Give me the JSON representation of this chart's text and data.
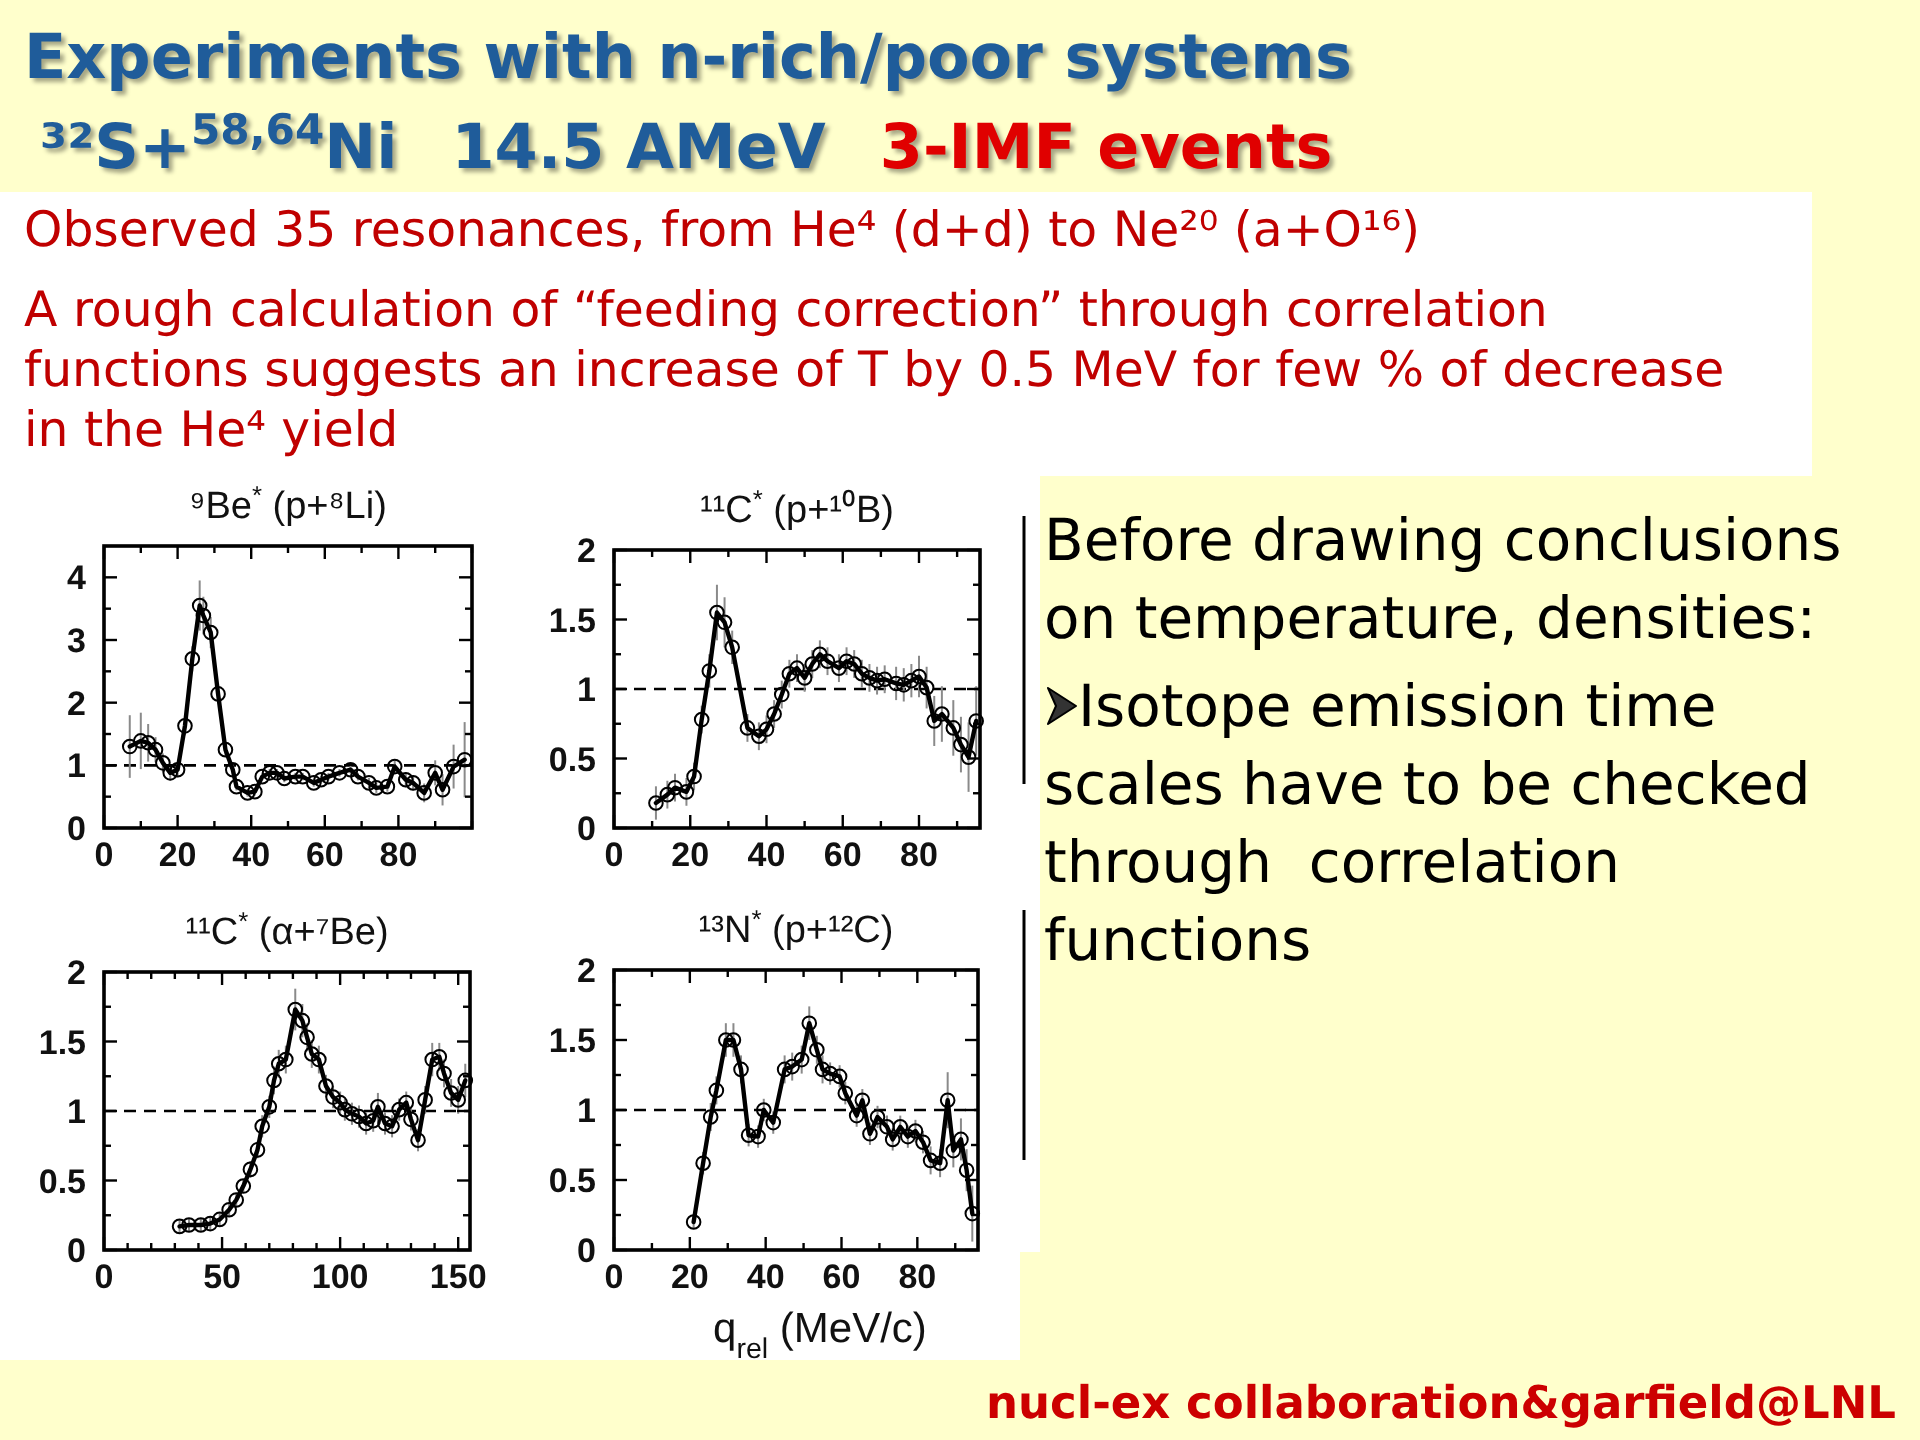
{
  "chart_data": [
    {
      "type": "other",
      "title": "Experiments with n-rich/poor systems",
      "subtitle": "³²S+$^{58,64}$Ni  14.5 AMeV  3-IMF events",
      "annotations": [
        "Observed 35 resonances, from He⁴ (d+d) to Ne²⁰ (a+O¹⁶)",
        "A rough calculation of “feeding correction” through correlation functions suggests an increase of T by 0.5 MeV for few % of decrease in the He⁴ yield",
        "Before drawing conclusions on temperature, densities:",
        "Isotope emission time scales have to be checked through  correlation functions",
        "nucl-ex collaboration&garfield@LNL"
      ]
    },
    {
      "type": "line",
      "title": "⁹Be$^{*}$ (p+⁸Li)",
      "color": "#000000",
      "marker": "circle",
      "x": [
        7,
        10,
        12,
        14,
        16,
        18,
        20,
        22,
        24,
        26,
        27,
        29,
        31,
        33,
        35,
        36,
        39,
        41,
        43,
        45,
        47,
        49,
        52,
        54,
        57,
        59,
        61,
        64,
        67,
        69,
        72,
        74,
        77,
        79,
        82,
        84,
        87,
        90,
        92,
        95,
        98
      ],
      "values": [
        1.3,
        1.39,
        1.36,
        1.25,
        1.04,
        0.88,
        0.93,
        1.63,
        2.7,
        3.55,
        3.39,
        3.12,
        2.14,
        1.25,
        0.93,
        0.66,
        0.56,
        0.58,
        0.82,
        0.88,
        0.88,
        0.79,
        0.82,
        0.82,
        0.72,
        0.77,
        0.82,
        0.88,
        0.93,
        0.82,
        0.72,
        0.64,
        0.66,
        0.98,
        0.77,
        0.72,
        0.56,
        0.88,
        0.61,
        0.98,
        1.09
      ],
      "errors": [
        0.5,
        0.45,
        0.3,
        0.2,
        0.15,
        0.12,
        0.12,
        0.15,
        0.2,
        0.4,
        0.3,
        0.25,
        0.15,
        0.1,
        0.08,
        0.06,
        0.06,
        0.06,
        0.06,
        0.06,
        0.06,
        0.06,
        0.06,
        0.06,
        0.06,
        0.06,
        0.06,
        0.06,
        0.06,
        0.06,
        0.08,
        0.08,
        0.08,
        0.1,
        0.12,
        0.12,
        0.15,
        0.2,
        0.25,
        0.35,
        0.6
      ],
      "xlim": [
        0,
        100
      ],
      "xticks": [
        0,
        {
          "value": 10,
          "label": null
        },
        20,
        {
          "value": 30,
          "label": null
        },
        40,
        {
          "value": 50,
          "label": null
        },
        60,
        {
          "value": 70,
          "label": null
        },
        80,
        {
          "value": 90,
          "label": null
        },
        {
          "value": 100,
          "label": null
        }
      ],
      "ylim": [
        0,
        4.5
      ],
      "yticks": [
        0,
        {
          "value": 0.5,
          "label": null
        },
        1,
        {
          "value": 1.5,
          "label": null
        },
        2,
        {
          "value": 2.5,
          "label": null
        },
        3,
        {
          "value": 3.5,
          "label": null
        },
        4
      ],
      "ref_lines": [
        {
          "axis": "y",
          "value": 1,
          "line_style": "dashed"
        }
      ]
    },
    {
      "type": "line",
      "title": "¹¹C$^{*}$ (p+¹⁰B)",
      "color": "#000000",
      "marker": "circle",
      "x": [
        11,
        14,
        16,
        19,
        21,
        23,
        25,
        27,
        29,
        31,
        35,
        38,
        40,
        42,
        44,
        46,
        48,
        50,
        52,
        54,
        56,
        59,
        61,
        63,
        65,
        67,
        69,
        71,
        74,
        76,
        78,
        80,
        82,
        84,
        86,
        89,
        91,
        93,
        95
      ],
      "values": [
        0.18,
        0.24,
        0.29,
        0.26,
        0.37,
        0.78,
        1.13,
        1.55,
        1.48,
        1.3,
        0.72,
        0.66,
        0.71,
        0.82,
        0.96,
        1.11,
        1.15,
        1.08,
        1.18,
        1.25,
        1.2,
        1.15,
        1.2,
        1.18,
        1.11,
        1.08,
        1.06,
        1.07,
        1.04,
        1.03,
        1.06,
        1.09,
        1.01,
        0.77,
        0.82,
        0.72,
        0.6,
        0.51,
        0.77
      ],
      "errors": [
        0.12,
        0.1,
        0.1,
        0.1,
        0.1,
        0.1,
        0.12,
        0.2,
        0.18,
        0.12,
        0.1,
        0.1,
        0.1,
        0.1,
        0.1,
        0.1,
        0.1,
        0.1,
        0.1,
        0.1,
        0.1,
        0.1,
        0.1,
        0.1,
        0.1,
        0.1,
        0.1,
        0.1,
        0.12,
        0.12,
        0.12,
        0.15,
        0.15,
        0.18,
        0.2,
        0.2,
        0.2,
        0.25,
        0.25
      ],
      "xlim": [
        0,
        96
      ],
      "xticks": [
        0,
        {
          "value": 10,
          "label": null
        },
        20,
        {
          "value": 30,
          "label": null
        },
        40,
        {
          "value": 50,
          "label": null
        },
        60,
        {
          "value": 70,
          "label": null
        },
        80,
        {
          "value": 90,
          "label": null
        }
      ],
      "ylim": [
        0,
        2
      ],
      "yticks": [
        0,
        {
          "value": 0.25,
          "label": null
        },
        0.5,
        {
          "value": 0.75,
          "label": null
        },
        1,
        {
          "value": 1.25,
          "label": null
        },
        1.5,
        {
          "value": 1.75,
          "label": null
        },
        2
      ],
      "ref_lines": [
        {
          "axis": "y",
          "value": 1,
          "line_style": "dashed"
        }
      ]
    },
    {
      "type": "line",
      "title": "¹¹C$^{*}$ (α+⁷Be)",
      "color": "#000000",
      "marker": "circle",
      "x": [
        32,
        36,
        41,
        45,
        49,
        53,
        56,
        59,
        62,
        65,
        67,
        70,
        72,
        74,
        77,
        81,
        84,
        86,
        88,
        91,
        94,
        97,
        100,
        102,
        105,
        108,
        111,
        114,
        116,
        119,
        122,
        125,
        128,
        130,
        133,
        136,
        139,
        142,
        144,
        147,
        150,
        153
      ],
      "values": [
        0.17,
        0.18,
        0.18,
        0.19,
        0.22,
        0.29,
        0.36,
        0.46,
        0.58,
        0.72,
        0.89,
        1.03,
        1.22,
        1.34,
        1.37,
        1.73,
        1.65,
        1.53,
        1.41,
        1.37,
        1.18,
        1.1,
        1.06,
        1.01,
        0.98,
        0.96,
        0.91,
        0.93,
        1.03,
        0.91,
        0.89,
        1.01,
        1.06,
        0.94,
        0.79,
        1.08,
        1.37,
        1.39,
        1.27,
        1.13,
        1.08,
        1.22
      ],
      "errors": [
        0.05,
        0.05,
        0.05,
        0.05,
        0.05,
        0.05,
        0.05,
        0.05,
        0.06,
        0.06,
        0.08,
        0.08,
        0.1,
        0.1,
        0.1,
        0.15,
        0.12,
        0.1,
        0.1,
        0.1,
        0.08,
        0.08,
        0.08,
        0.08,
        0.08,
        0.08,
        0.08,
        0.08,
        0.1,
        0.08,
        0.08,
        0.08,
        0.08,
        0.08,
        0.08,
        0.1,
        0.12,
        0.1,
        0.1,
        0.1,
        0.1,
        0.12
      ],
      "xlim": [
        0,
        155
      ],
      "xticks": [
        0,
        {
          "value": 10,
          "label": null
        },
        {
          "value": 20,
          "label": null
        },
        {
          "value": 30,
          "label": null
        },
        {
          "value": 40,
          "label": null
        },
        50,
        {
          "value": 60,
          "label": null
        },
        {
          "value": 70,
          "label": null
        },
        {
          "value": 80,
          "label": null
        },
        {
          "value": 90,
          "label": null
        },
        100,
        {
          "value": 110,
          "label": null
        },
        {
          "value": 120,
          "label": null
        },
        {
          "value": 130,
          "label": null
        },
        {
          "value": 140,
          "label": null
        },
        150
      ],
      "ylim": [
        0,
        2
      ],
      "yticks": [
        0,
        {
          "value": 0.25,
          "label": null
        },
        0.5,
        {
          "value": 0.75,
          "label": null
        },
        1,
        {
          "value": 1.25,
          "label": null
        },
        1.5,
        {
          "value": 1.75,
          "label": null
        },
        2
      ],
      "ref_lines": [
        {
          "axis": "y",
          "value": 1,
          "line_style": "dashed"
        }
      ]
    },
    {
      "type": "line",
      "title": "¹³N$^{*}$ (p+¹²C)",
      "xlabel": "q$_{rel}$ (MeV/c)",
      "color": "#000000",
      "marker": "circle",
      "x": [
        21,
        23.5,
        25.5,
        27,
        29.5,
        31.5,
        33.5,
        35.5,
        38,
        39.5,
        42,
        45,
        47,
        49.5,
        51.5,
        53.5,
        55,
        57,
        59.5,
        61,
        64,
        65.5,
        67.5,
        69.5,
        72,
        73.5,
        75.5,
        77.5,
        79.5,
        81.5,
        83.5,
        86,
        88,
        89.5,
        91.5,
        93,
        94.5
      ],
      "values": [
        0.2,
        0.62,
        0.95,
        1.14,
        1.5,
        1.5,
        1.29,
        0.82,
        0.81,
        1.0,
        0.91,
        1.29,
        1.31,
        1.36,
        1.62,
        1.43,
        1.29,
        1.26,
        1.24,
        1.12,
        0.96,
        1.07,
        0.83,
        0.95,
        0.88,
        0.79,
        0.88,
        0.81,
        0.85,
        0.77,
        0.64,
        0.62,
        1.07,
        0.71,
        0.79,
        0.57,
        0.26
      ],
      "errors": [
        0.05,
        0.08,
        0.1,
        0.1,
        0.12,
        0.12,
        0.1,
        0.08,
        0.08,
        0.08,
        0.08,
        0.1,
        0.1,
        0.1,
        0.12,
        0.1,
        0.1,
        0.08,
        0.08,
        0.08,
        0.08,
        0.08,
        0.08,
        0.08,
        0.08,
        0.08,
        0.08,
        0.08,
        0.08,
        0.08,
        0.1,
        0.1,
        0.2,
        0.12,
        0.15,
        0.15,
        0.2
      ],
      "xlim": [
        0,
        96
      ],
      "xticks": [
        0,
        {
          "value": 10,
          "label": null
        },
        20,
        {
          "value": 30,
          "label": null
        },
        40,
        {
          "value": 50,
          "label": null
        },
        60,
        {
          "value": 70,
          "label": null
        },
        80,
        {
          "value": 90,
          "label": null
        }
      ],
      "ylim": [
        0,
        2
      ],
      "yticks": [
        0,
        {
          "value": 0.25,
          "label": null
        },
        0.5,
        {
          "value": 0.75,
          "label": null
        },
        1,
        {
          "value": 1.25,
          "label": null
        },
        1.5,
        {
          "value": 1.75,
          "label": null
        },
        2
      ],
      "ref_lines": [
        {
          "axis": "y",
          "value": 1,
          "line_style": "dashed"
        }
      ]
    }
  ]
}
